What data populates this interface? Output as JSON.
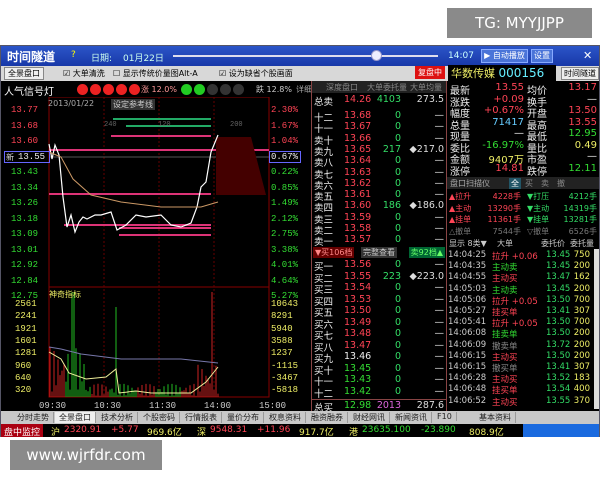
{
  "watermarks": {
    "top": "TG: MYYJJPP",
    "bottom": "www.wjrfdr.com"
  },
  "titlebar": {
    "app": "时间隧道",
    "date_label": "日期:",
    "date_value": "01月22日",
    "time": "14:07",
    "autoplay": "▶ 自动播放",
    "settings": "设置",
    "close": "✕"
  },
  "toolbar": {
    "panel": "全景盘口",
    "opt1": "☑ 大单清洗",
    "opt2": "☐ 显示传统价量图Alt-A",
    "opt3": "☑ 设为缺省个股画面",
    "replay_badge": "复盘中",
    "stock_name": "华数传媒",
    "stock_code": "000156",
    "tunnel_btn": "时间隧道"
  },
  "signal": {
    "title": "人气信号灯",
    "up_pct": "涨 12.0%",
    "down_pct": "跌 12.8%",
    "detail": "详细"
  },
  "chart": {
    "date": "2013/01/22",
    "ref_btn": "设定参考线",
    "current_tag": "新",
    "current_price": "13.55",
    "current_pct": "0.67%",
    "price_labels": [
      "13.77",
      "13.68",
      "13.60",
      "13.55",
      "13.43",
      "13.34",
      "13.26",
      "13.18",
      "13.09",
      "13.01",
      "12.92",
      "12.84",
      "12.75"
    ],
    "pct_labels": [
      "2.30%",
      "1.67%",
      "1.04%",
      "0.67%",
      "0.22%",
      "0.85%",
      "1.49%",
      "2.12%",
      "2.75%",
      "3.38%",
      "4.01%",
      "4.64%",
      "5.27%"
    ],
    "grid_labels": [
      "240",
      "120",
      "200"
    ],
    "indicator": "神奇指标",
    "vol_left": [
      "2561",
      "2241",
      "1921",
      "1601",
      "1281",
      "960",
      "640",
      "320"
    ],
    "vol_right": [
      "10643",
      "8291",
      "5940",
      "3588",
      "1237",
      "-1115",
      "-3467",
      "-5818"
    ],
    "times": [
      "09:30",
      "10:30",
      "11:30",
      "14:00",
      "15:00"
    ]
  },
  "orderbook": {
    "header": [
      "深度盘口",
      "大单委托量",
      "大单均量"
    ],
    "total_sell": {
      "label": "总卖",
      "price": "14.26",
      "qty": "4103",
      "avg": "273.5"
    },
    "sells": [
      [
        "十二",
        "13.68",
        "0",
        "—"
      ],
      [
        "十一",
        "13.67",
        "0",
        "—"
      ],
      [
        "卖十",
        "13.66",
        "0",
        "—"
      ],
      [
        "卖九",
        "13.65",
        "217",
        "◆217.0"
      ],
      [
        "卖八",
        "13.64",
        "0",
        "—"
      ],
      [
        "卖七",
        "13.63",
        "0",
        "—"
      ],
      [
        "卖六",
        "13.62",
        "0",
        "—"
      ],
      [
        "卖五",
        "13.61",
        "0",
        "—"
      ],
      [
        "卖四",
        "13.60",
        "186",
        "◆186.0"
      ],
      [
        "卖三",
        "13.59",
        "0",
        "—"
      ],
      [
        "卖二",
        "13.58",
        "0",
        "—"
      ],
      [
        "卖一",
        "13.57",
        "0",
        "—"
      ]
    ],
    "mid": {
      "buy_tab": "▼买106档",
      "full_view": "完整查看",
      "sell_tab": "卖92档▲"
    },
    "buys": [
      [
        "买一",
        "13.56",
        "0",
        "—"
      ],
      [
        "买二",
        "13.55",
        "223",
        "◆223.0"
      ],
      [
        "买三",
        "13.54",
        "0",
        "—"
      ],
      [
        "买四",
        "13.53",
        "0",
        "—"
      ],
      [
        "买五",
        "13.50",
        "0",
        "—"
      ],
      [
        "买六",
        "13.49",
        "0",
        "—"
      ],
      [
        "买七",
        "13.48",
        "0",
        "—"
      ],
      [
        "买八",
        "13.47",
        "0",
        "—"
      ],
      [
        "买九",
        "13.46",
        "0",
        "—"
      ],
      [
        "买十",
        "13.45",
        "0",
        "—"
      ],
      [
        "十一",
        "13.43",
        "0",
        "—"
      ],
      [
        "十二",
        "13.42",
        "0",
        "—"
      ]
    ],
    "total_buy": {
      "label": "总买",
      "price": "12.98",
      "qty": "2013",
      "avg": "287.6"
    }
  },
  "quote": [
    [
      "最新",
      "13.55",
      "均价",
      "13.17"
    ],
    [
      "涨跌",
      "+0.09",
      "换手",
      "—"
    ],
    [
      "幅度",
      "+0.67%",
      "开盘",
      "13.50"
    ],
    [
      "总量",
      "71417",
      "最高",
      "13.55"
    ],
    [
      "现量",
      "—",
      "最低",
      "12.95"
    ],
    [
      "委比",
      "-16.97%",
      "量比",
      "0.49"
    ],
    [
      "金额",
      "9407万",
      "市盈",
      "—"
    ],
    [
      "涨停",
      "14.81",
      "跌停",
      "12.11"
    ]
  ],
  "scanner": {
    "title": "盘口扫描仪",
    "tabs": [
      "全",
      "买",
      "卖",
      "撤"
    ],
    "rows": [
      [
        "▲拉升",
        "4228手",
        "▼打压",
        "4212手"
      ],
      [
        "▲主动",
        "13290手",
        "▼主动",
        "14319手"
      ],
      [
        "▲挂单",
        "11361手",
        "▼挂单",
        "13281手"
      ],
      [
        "△撤单",
        "7544手",
        "▽撤单",
        "6526手"
      ]
    ],
    "footer": [
      "显示 8类▼",
      "大单",
      "委托价",
      "委托量"
    ]
  },
  "trades": [
    [
      "14:04:25",
      "拉升 +0.06",
      "13.45",
      "750",
      "r"
    ],
    [
      "14:04:35",
      "主动卖",
      "13.45",
      "200",
      "g"
    ],
    [
      "14:04:55",
      "主动买",
      "13.47",
      "162",
      "r"
    ],
    [
      "14:05:03",
      "主动卖",
      "13.45",
      "200",
      "g"
    ],
    [
      "14:05:06",
      "拉升 +0.05",
      "13.50",
      "700",
      "r"
    ],
    [
      "14:05:27",
      "挂买单",
      "13.41",
      "307",
      "r"
    ],
    [
      "14:05:41",
      "拉升 +0.05",
      "13.50",
      "700",
      "r"
    ],
    [
      "14:06:08",
      "挂卖单",
      "13.50",
      "200",
      "g"
    ],
    [
      "14:06:09",
      "撤卖单",
      "13.72",
      "200",
      "x"
    ],
    [
      "14:06:15",
      "主动买",
      "13.50",
      "200",
      "r"
    ],
    [
      "14:06:15",
      "撤买单",
      "13.41",
      "307",
      "x"
    ],
    [
      "14:06:28",
      "主动买",
      "13.52",
      "183",
      "r"
    ],
    [
      "14:06:48",
      "挂买单",
      "13.54",
      "400",
      "r"
    ],
    [
      "14:06:52",
      "主动买",
      "13.55",
      "370",
      "r"
    ]
  ],
  "tabs": [
    "分时走势",
    "全景盘口",
    "技术分析",
    "个股密码",
    "行情报表",
    "量价分布",
    "权息资料",
    "融资融券",
    "财经网讯",
    "新闻资讯",
    "F10",
    "基本资料"
  ],
  "ticker": {
    "monitor": "盘中监控",
    "sh": [
      "沪",
      "2320.91",
      "+5.77",
      "969.6亿"
    ],
    "sz": [
      "深",
      "9548.31",
      "+11.96",
      "917.7亿"
    ],
    "hk": [
      "港",
      "23635.100",
      "-23.890",
      "808.9亿"
    ]
  }
}
